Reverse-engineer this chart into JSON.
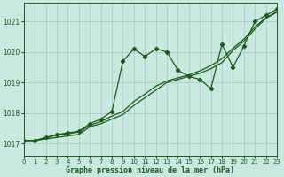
{
  "title": "Graphe pression niveau de la mer (hPa)",
  "background_color": "#c8e8e0",
  "grid_color": "#b0ccc8",
  "line_color": "#1a5c1a",
  "xlim": [
    0,
    23
  ],
  "ylim": [
    1016.6,
    1021.6
  ],
  "yticks": [
    1017,
    1018,
    1019,
    1020,
    1021
  ],
  "xticks": [
    0,
    1,
    2,
    3,
    4,
    5,
    6,
    7,
    8,
    9,
    10,
    11,
    12,
    13,
    14,
    15,
    16,
    17,
    18,
    19,
    20,
    21,
    22,
    23
  ],
  "s1_x": [
    0,
    1,
    2,
    3,
    4,
    5,
    6,
    7,
    8,
    9,
    10,
    11,
    12,
    13,
    14,
    15,
    16,
    17,
    18,
    19,
    20,
    21,
    22,
    23
  ],
  "s1_y": [
    1017.1,
    1017.1,
    1017.2,
    1017.3,
    1017.35,
    1017.4,
    1017.65,
    1017.8,
    1018.05,
    1019.7,
    1020.1,
    1019.85,
    1020.1,
    1020.0,
    1019.4,
    1019.2,
    1019.1,
    1018.8,
    1020.25,
    1019.5,
    1020.2,
    1021.0,
    1021.2,
    1021.4
  ],
  "s2_x": [
    0,
    1,
    2,
    3,
    4,
    5,
    6,
    7,
    8,
    9,
    10,
    11,
    12,
    13,
    14,
    15,
    16,
    17,
    18,
    19,
    20,
    21,
    22,
    23
  ],
  "s2_y": [
    1017.1,
    1017.1,
    1017.15,
    1017.2,
    1017.25,
    1017.3,
    1017.55,
    1017.65,
    1017.8,
    1017.95,
    1018.25,
    1018.5,
    1018.75,
    1019.0,
    1019.1,
    1019.2,
    1019.3,
    1019.45,
    1019.65,
    1020.05,
    1020.35,
    1020.75,
    1021.1,
    1021.3
  ],
  "s3_x": [
    0,
    1,
    2,
    3,
    4,
    5,
    6,
    7,
    8,
    9,
    10,
    11,
    12,
    13,
    14,
    15,
    16,
    17,
    18,
    19,
    20,
    21,
    22,
    23
  ],
  "s3_y": [
    1017.1,
    1017.1,
    1017.18,
    1017.28,
    1017.32,
    1017.38,
    1017.6,
    1017.72,
    1017.9,
    1018.05,
    1018.38,
    1018.62,
    1018.88,
    1019.05,
    1019.15,
    1019.25,
    1019.38,
    1019.55,
    1019.78,
    1020.12,
    1020.42,
    1020.82,
    1021.12,
    1021.32
  ]
}
